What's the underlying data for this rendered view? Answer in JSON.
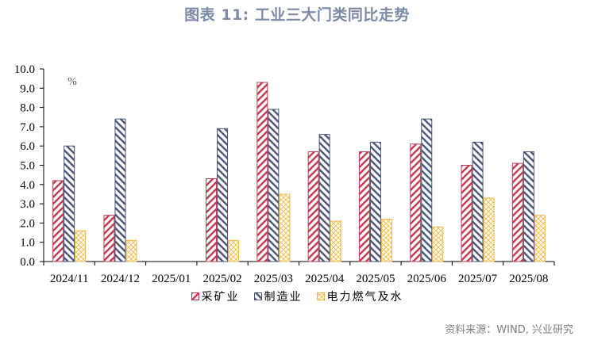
{
  "title": "图表 11: 工业三大门类同比走势",
  "unit": "%",
  "source": "资料来源：WIND, 兴业研究",
  "colors": {
    "mining": "#c0394e",
    "manufacturing": "#4a5577",
    "utilities": "#f0b84a",
    "title": "#7b8aa6",
    "source": "#7f7f7f"
  },
  "legend": [
    {
      "name": "采矿业",
      "pattern": "diag-down",
      "color": "#c0394e"
    },
    {
      "name": "制造业",
      "pattern": "diag-up",
      "color": "#4a5577"
    },
    {
      "name": "电力燃气及水",
      "pattern": "crosshatch",
      "color": "#f0b84a"
    }
  ],
  "chart_data": {
    "type": "bar",
    "title": "工业三大门类同比走势",
    "xlabel": "",
    "ylabel": "%",
    "ylim": [
      0,
      10
    ],
    "yticks": [
      "0.0",
      "1.0",
      "2.0",
      "3.0",
      "4.0",
      "5.0",
      "6.0",
      "7.0",
      "8.0",
      "9.0",
      "10.0"
    ],
    "grid": false,
    "legend_position": "bottom",
    "categories": [
      "2024/11",
      "2024/12",
      "2025/01",
      "2025/02",
      "2025/03",
      "2025/04",
      "2025/05",
      "2025/06",
      "2025/07",
      "2025/08"
    ],
    "series": [
      {
        "name": "采矿业",
        "values": [
          4.2,
          2.4,
          null,
          4.3,
          9.3,
          5.7,
          5.7,
          6.1,
          5.0,
          5.1
        ]
      },
      {
        "name": "制造业",
        "values": [
          6.0,
          7.4,
          null,
          6.9,
          7.9,
          6.6,
          6.2,
          7.4,
          6.2,
          5.7
        ]
      },
      {
        "name": "电力燃气及水",
        "values": [
          1.6,
          1.1,
          null,
          1.1,
          3.5,
          2.1,
          2.2,
          1.8,
          3.3,
          2.4
        ]
      }
    ]
  }
}
